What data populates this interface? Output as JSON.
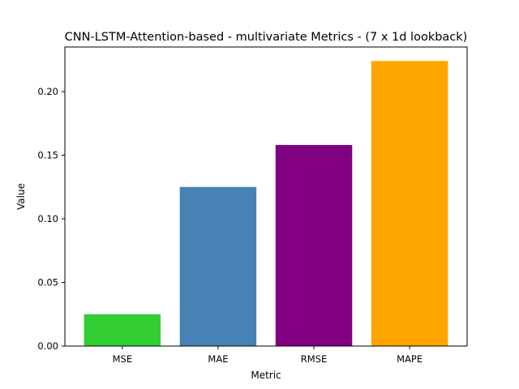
{
  "chart_data": {
    "type": "bar",
    "title": "CNN-LSTM-Attention-based - multivariate Metrics - (7 x 1d lookback)",
    "xlabel": "Metric",
    "ylabel": "Value",
    "categories": [
      "MSE",
      "MAE",
      "RMSE",
      "MAPE"
    ],
    "values": [
      0.025,
      0.125,
      0.158,
      0.224
    ],
    "colors": [
      "#32cd32",
      "#4682b4",
      "#800080",
      "#ffa500"
    ],
    "ylim": [
      0,
      0.235
    ],
    "yticks": [
      0.0,
      0.05,
      0.1,
      0.15,
      0.2
    ],
    "ytick_labels": [
      "0.00",
      "0.05",
      "0.10",
      "0.15",
      "0.20"
    ],
    "grid": false,
    "legend": "none"
  }
}
